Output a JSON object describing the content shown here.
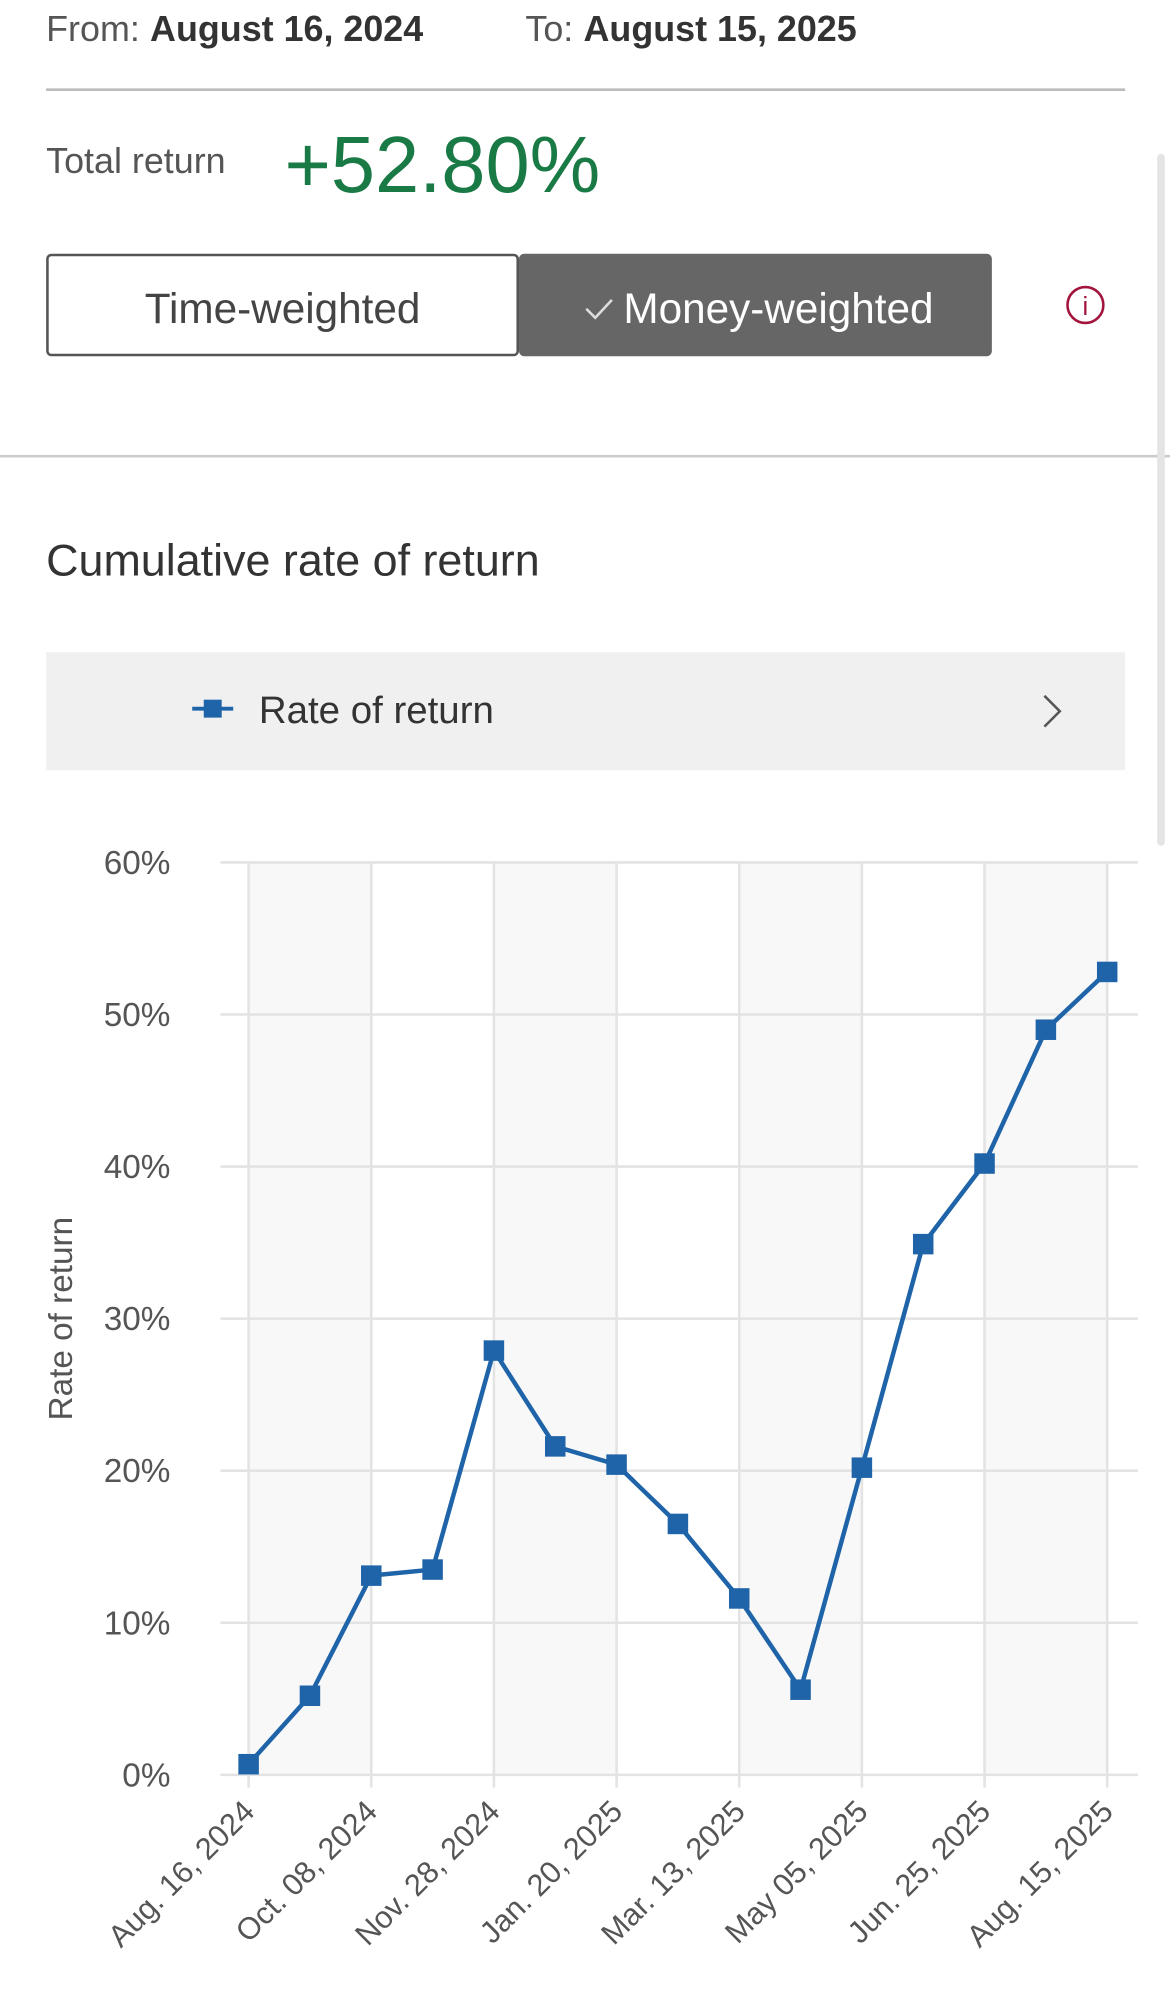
{
  "header": {
    "from_label": "From:",
    "from_date": "August 16, 2024",
    "to_label": "To:",
    "to_date": "August 15, 2025",
    "total_return_label": "Total return",
    "total_return": "+52.80%",
    "toggle": {
      "options": [
        "Time-weighted",
        "Money-weighted"
      ],
      "selected": 1
    }
  },
  "chart_data": {
    "type": "line",
    "title": "Cumulative rate of return",
    "y_label": "Rate of return",
    "categories": [
      "Aug. 16, 2024",
      null,
      "Oct. 08, 2024",
      null,
      "Nov. 28, 2024",
      null,
      "Jan. 20, 2025",
      null,
      "Mar. 13, 2025",
      null,
      "May 05, 2025",
      null,
      "Jun. 25, 2025",
      null,
      "Aug. 15, 2025"
    ],
    "series": [
      {
        "name": "Rate of return",
        "color": "#1f64a8",
        "values": [
          0.7,
          5.2,
          13.1,
          13.5,
          27.9,
          21.6,
          20.4,
          16.5,
          11.6,
          5.6,
          20.2,
          34.9,
          40.2,
          49.0,
          52.8
        ]
      }
    ],
    "ylim": [
      0,
      60
    ],
    "yticks": [
      {
        "value": 0,
        "label": "0%"
      },
      {
        "value": 10,
        "label": "10%"
      },
      {
        "value": 20,
        "label": "20%"
      },
      {
        "value": 30,
        "label": "30%"
      },
      {
        "value": 40,
        "label": "40%"
      },
      {
        "value": 50,
        "label": "50%"
      },
      {
        "value": 60,
        "label": "60%"
      }
    ],
    "grid": true
  }
}
